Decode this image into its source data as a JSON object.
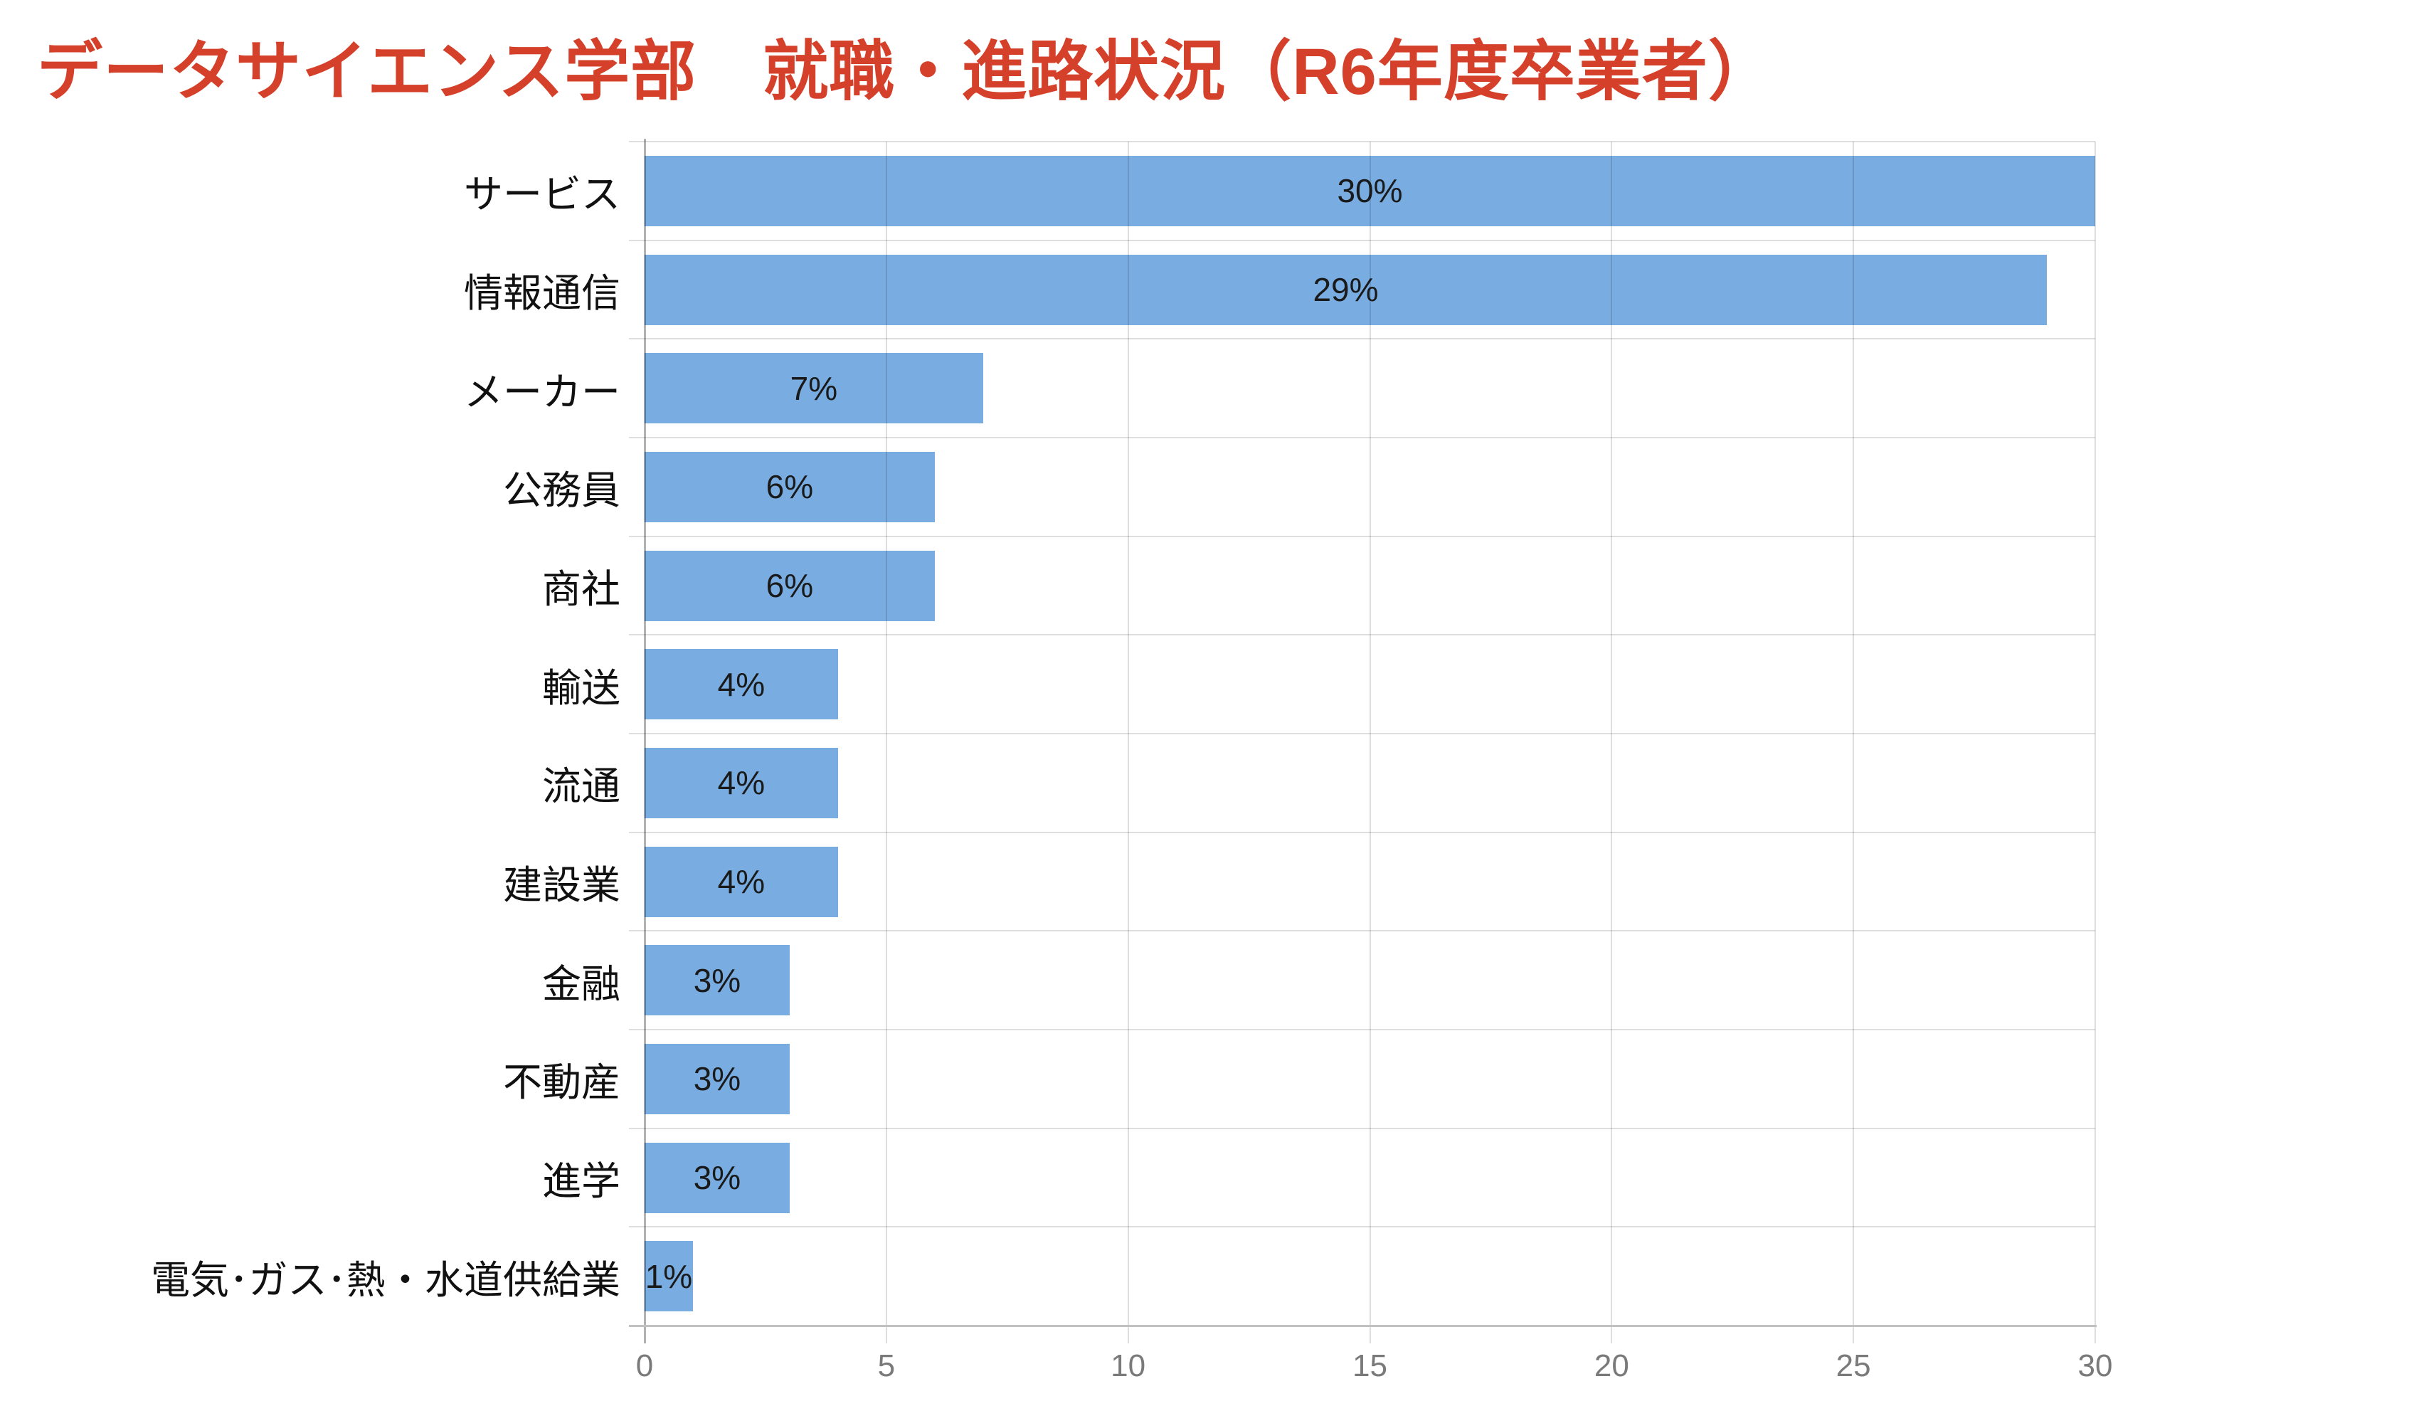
{
  "title": {
    "text": "データサイエンス学部　就職・進路状況（R6年度卒業者）"
  },
  "colors": {
    "title_text": "#d5402b",
    "bar": "#79ade2",
    "grid_line": "rgba(0,0,0,0.13)",
    "row_line": "#dedede",
    "zero_axis_line": "rgba(0,0,0,0.30)",
    "axis_line": "#c1c1c1",
    "tick_text": "#7a7a7a",
    "value_text": "#1a1a1a",
    "category_text": "#111111"
  },
  "chart_data": {
    "type": "bar",
    "orientation": "horizontal",
    "title": "データサイエンス学部　就職・進路状況（R6年度卒業者）",
    "categories": [
      "サービス",
      "情報通信",
      "メーカー",
      "公務員",
      "商社",
      "輸送",
      "流通",
      "建設業",
      "金融",
      "不動産",
      "進学",
      "電気･ガス･熱・水道供給業"
    ],
    "values": [
      30,
      29,
      7,
      6,
      6,
      4,
      4,
      4,
      3,
      3,
      3,
      1
    ],
    "data_labels": [
      "30%",
      "29%",
      "7%",
      "6%",
      "6%",
      "4%",
      "4%",
      "4%",
      "3%",
      "3%",
      "3%",
      "1%"
    ],
    "xlabel": "",
    "ylabel": "",
    "xlim": [
      0,
      30
    ],
    "xticks": [
      "0",
      "5",
      "10",
      "15",
      "20",
      "25",
      "30"
    ],
    "grid": "on",
    "legend": "none"
  }
}
